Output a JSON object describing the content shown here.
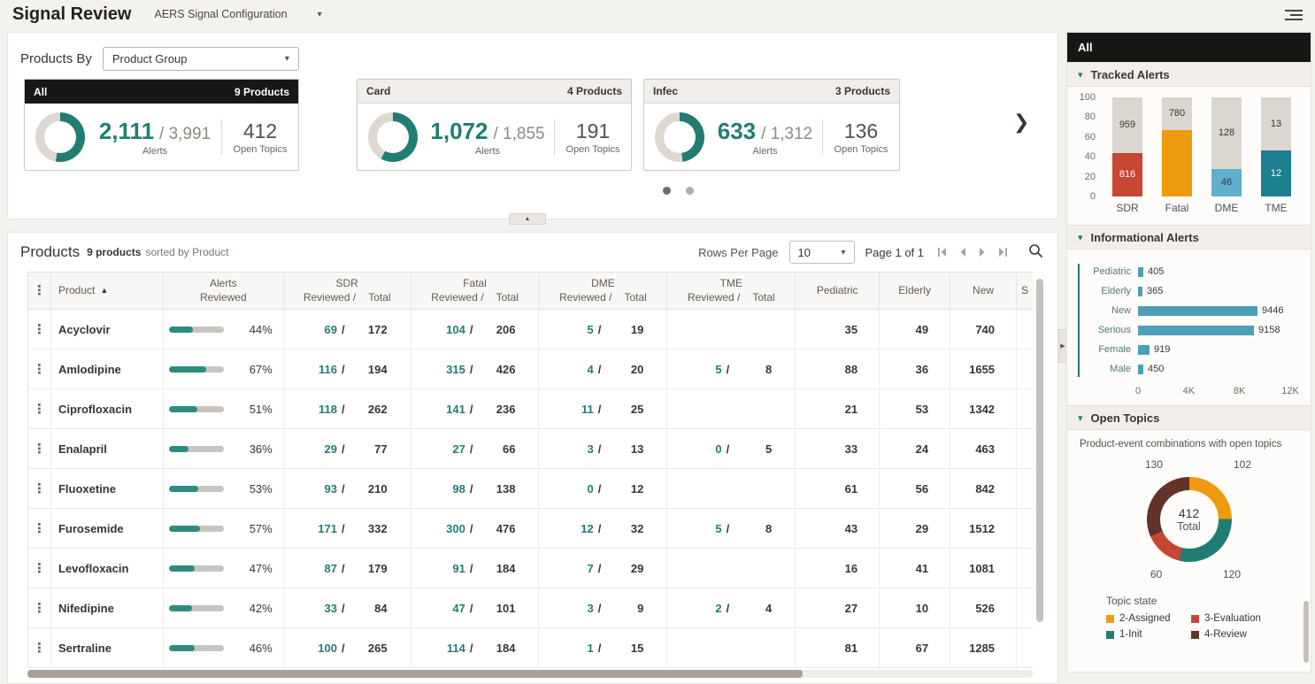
{
  "icons": {
    "caret_down": "▾",
    "sort_asc": "▲",
    "kebab": "⋮",
    "chevron_right": "❯",
    "collapse_up": "▲",
    "expand_right": "▶"
  },
  "colors": {
    "teal": "#217d74",
    "ring_track": "#ddd8d2",
    "red": "#c74634",
    "orange": "#ef9b0e",
    "light_blue": "#62aecd",
    "teal_blue": "#1b7f8e",
    "maroon": "#63332a",
    "info_bar": "#4f9eb8",
    "progress": "#2e8b80",
    "header_black": "#191715"
  },
  "topbar": {
    "title": "Signal Review",
    "config": "AERS Signal Configuration"
  },
  "products_by": {
    "label": "Products By",
    "value": "Product Group"
  },
  "cards": [
    {
      "name": "All",
      "products": "9 Products",
      "reviewed": "2,111",
      "total": "/ 3,991",
      "alerts_label": "Alerts",
      "topics": "412",
      "topics_label": "Open Topics",
      "pct": 53
    },
    {
      "name": "Card",
      "products": "4 Products",
      "reviewed": "1,072",
      "total": "/ 1,855",
      "alerts_label": "Alerts",
      "topics": "191",
      "topics_label": "Open Topics",
      "pct": 58
    },
    {
      "name": "Infec",
      "products": "3 Products",
      "reviewed": "633",
      "total": "/ 1,312",
      "alerts_label": "Alerts",
      "topics": "136",
      "topics_label": "Open Topics",
      "pct": 48
    }
  ],
  "table": {
    "title": "Products",
    "count": "9 products",
    "sorted": "sorted by Product",
    "rows_per_page_label": "Rows Per Page",
    "rows_per_page": "10",
    "page": "Page 1 of 1",
    "headers": {
      "product": "Product",
      "alerts1": "Alerts",
      "alerts2": "Reviewed",
      "sdr": "SDR",
      "fatal": "Fatal",
      "dme": "DME",
      "tme": "TME",
      "sub_rev": "Reviewed /",
      "sub_tot": "Total",
      "pediatric": "Pediatric",
      "elderly": "Elderly",
      "new": "New",
      "trunc": "S"
    },
    "rows": [
      {
        "product": "Acyclovir",
        "pct": 44,
        "sdr_r": "69",
        "sdr_t": "172",
        "fatal_r": "104",
        "fatal_t": "206",
        "dme_r": "5",
        "dme_t": "19",
        "tme_r": "",
        "tme_t": "",
        "pediatric": "35",
        "elderly": "49",
        "new": "740"
      },
      {
        "product": "Amlodipine",
        "pct": 67,
        "sdr_r": "116",
        "sdr_t": "194",
        "fatal_r": "315",
        "fatal_t": "426",
        "dme_r": "4",
        "dme_t": "20",
        "tme_r": "5",
        "tme_t": "8",
        "pediatric": "88",
        "elderly": "36",
        "new": "1655"
      },
      {
        "product": "Ciprofloxacin",
        "pct": 51,
        "sdr_r": "118",
        "sdr_t": "262",
        "fatal_r": "141",
        "fatal_t": "236",
        "dme_r": "11",
        "dme_t": "25",
        "tme_r": "",
        "tme_t": "",
        "pediatric": "21",
        "elderly": "53",
        "new": "1342"
      },
      {
        "product": "Enalapril",
        "pct": 36,
        "sdr_r": "29",
        "sdr_t": "77",
        "fatal_r": "27",
        "fatal_t": "66",
        "dme_r": "3",
        "dme_t": "13",
        "tme_r": "0",
        "tme_t": "5",
        "pediatric": "33",
        "elderly": "24",
        "new": "463"
      },
      {
        "product": "Fluoxetine",
        "pct": 53,
        "sdr_r": "93",
        "sdr_t": "210",
        "fatal_r": "98",
        "fatal_t": "138",
        "dme_r": "0",
        "dme_t": "12",
        "tme_r": "",
        "tme_t": "",
        "pediatric": "61",
        "elderly": "56",
        "new": "842"
      },
      {
        "product": "Furosemide",
        "pct": 57,
        "sdr_r": "171",
        "sdr_t": "332",
        "fatal_r": "300",
        "fatal_t": "476",
        "dme_r": "12",
        "dme_t": "32",
        "tme_r": "5",
        "tme_t": "8",
        "pediatric": "43",
        "elderly": "29",
        "new": "1512"
      },
      {
        "product": "Levofloxacin",
        "pct": 47,
        "sdr_r": "87",
        "sdr_t": "179",
        "fatal_r": "91",
        "fatal_t": "184",
        "dme_r": "7",
        "dme_t": "29",
        "tme_r": "",
        "tme_t": "",
        "pediatric": "16",
        "elderly": "41",
        "new": "1081"
      },
      {
        "product": "Nifedipine",
        "pct": 42,
        "sdr_r": "33",
        "sdr_t": "84",
        "fatal_r": "47",
        "fatal_t": "101",
        "dme_r": "3",
        "dme_t": "9",
        "tme_r": "2",
        "tme_t": "4",
        "pediatric": "27",
        "elderly": "10",
        "new": "526"
      },
      {
        "product": "Sertraline",
        "pct": 46,
        "sdr_r": "100",
        "sdr_t": "265",
        "fatal_r": "114",
        "fatal_t": "184",
        "dme_r": "1",
        "dme_t": "15",
        "tme_r": "",
        "tme_t": "",
        "pediatric": "81",
        "elderly": "67",
        "new": "1285"
      }
    ]
  },
  "sidebar": {
    "header": "All",
    "tracked": {
      "title": "Tracked Alerts",
      "y_ticks": [
        "100",
        "80",
        "60",
        "40",
        "20",
        "0"
      ],
      "bars": [
        {
          "category": "SDR",
          "color": "#c74634",
          "pct": 44,
          "top": "959",
          "bottom": "816",
          "label_color": "#ffffff"
        },
        {
          "category": "Fatal",
          "color": "#ef9b0e",
          "pct": 67,
          "top": "780",
          "bottom": "",
          "label_color": "#ffffff"
        },
        {
          "category": "DME",
          "color": "#62aecd",
          "pct": 28,
          "top": "128",
          "bottom": "46",
          "label_color": "#2f3b40"
        },
        {
          "category": "TME",
          "color": "#1b7f8e",
          "pct": 46,
          "top": "13",
          "bottom": "12",
          "label_color": "#ffffff"
        }
      ]
    },
    "informational": {
      "title": "Informational Alerts",
      "max": 12000,
      "x_ticks": [
        "0",
        "4K",
        "8K",
        "12K"
      ],
      "bars": [
        {
          "category": "Pediatric",
          "value": 405,
          "label": "405"
        },
        {
          "category": "Elderly",
          "value": 365,
          "label": "365"
        },
        {
          "category": "New",
          "value": 9446,
          "label": "9446"
        },
        {
          "category": "Serious",
          "value": 9158,
          "label": "9158"
        },
        {
          "category": "Female",
          "value": 919,
          "label": "919"
        },
        {
          "category": "Male",
          "value": 450,
          "label": "450"
        }
      ]
    },
    "open_topics": {
      "title": "Open Topics",
      "subtitle": "Product-event combinations with open topics",
      "center_value": "412",
      "center_label": "Total",
      "segments": [
        {
          "name": "2-Assigned",
          "label": "102",
          "value": 102,
          "color": "#ef9b0e"
        },
        {
          "name": "1-Init",
          "label": "120",
          "value": 120,
          "color": "#217d74"
        },
        {
          "name": "3-Evaluation",
          "label": "60",
          "value": 60,
          "color": "#c74634"
        },
        {
          "name": "4-Review",
          "label": "130",
          "value": 130,
          "color": "#63332a"
        }
      ],
      "legend_title": "Topic state",
      "legend": [
        {
          "label": "2-Assigned",
          "color": "#ef9b0e"
        },
        {
          "label": "3-Evaluation",
          "color": "#c74634"
        },
        {
          "label": "1-Init",
          "color": "#217d74"
        },
        {
          "label": "4-Review",
          "color": "#63332a"
        }
      ]
    }
  },
  "chart_data": [
    {
      "type": "bar",
      "title": "Tracked Alerts",
      "stacked": true,
      "categories": [
        "SDR",
        "Fatal",
        "DME",
        "TME"
      ],
      "series": [
        {
          "name": "reviewed",
          "values": [
            816,
            null,
            46,
            12
          ]
        },
        {
          "name": "total",
          "values": [
            959,
            780,
            128,
            13
          ]
        }
      ],
      "ylim": [
        0,
        100
      ]
    },
    {
      "type": "bar",
      "title": "Informational Alerts",
      "orientation": "horizontal",
      "categories": [
        "Pediatric",
        "Elderly",
        "New",
        "Serious",
        "Female",
        "Male"
      ],
      "values": [
        405,
        365,
        9446,
        9158,
        919,
        450
      ],
      "xlim": [
        0,
        12000
      ],
      "x_ticks": [
        "0",
        "4K",
        "8K",
        "12K"
      ]
    },
    {
      "type": "pie",
      "title": "Open Topics",
      "donut": true,
      "center_label": "412 Total",
      "labels": [
        "2-Assigned",
        "1-Init",
        "3-Evaluation",
        "4-Review"
      ],
      "values": [
        102,
        120,
        60,
        130
      ]
    }
  ]
}
